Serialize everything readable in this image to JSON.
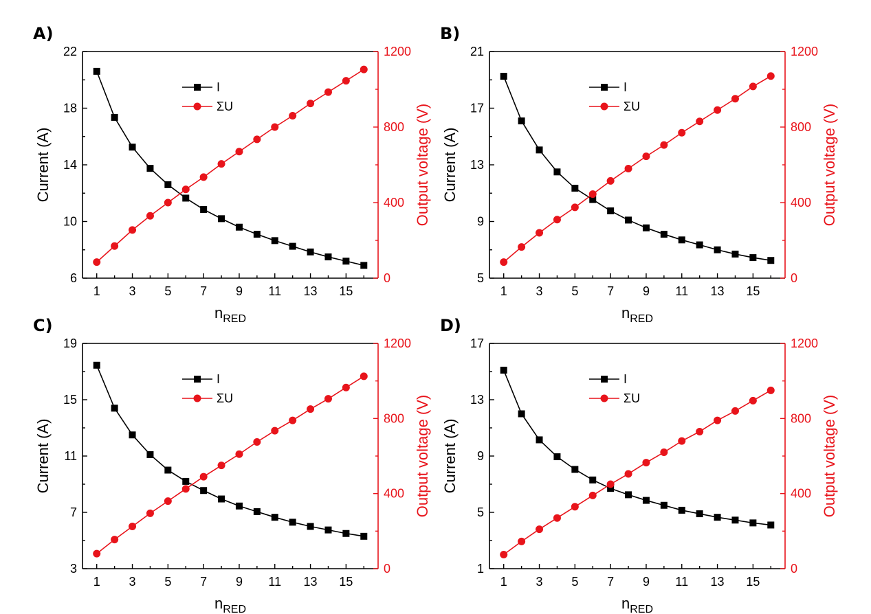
{
  "chart_data": [
    {
      "panel_label": "A)",
      "type": "line",
      "xlabel": "n",
      "xlabel_sub": "RED",
      "x": [
        1,
        2,
        3,
        4,
        5,
        6,
        7,
        8,
        9,
        10,
        11,
        12,
        13,
        14,
        15,
        16
      ],
      "x_ticks": [
        "1",
        "3",
        "5",
        "7",
        "9",
        "11",
        "13",
        "15"
      ],
      "left_axis": {
        "label": "Current (A)",
        "ylim": [
          6,
          22
        ],
        "ticks": [
          "6",
          "10",
          "14",
          "18",
          "22"
        ],
        "color": "#000000"
      },
      "right_axis": {
        "label": "Output voltage (V)",
        "ylim": [
          0,
          1200
        ],
        "ticks": [
          "0",
          "400",
          "800",
          "1200"
        ],
        "color": "#e8141b"
      },
      "series": [
        {
          "name": "I",
          "axis": "left",
          "color": "#000000",
          "marker": "square",
          "values": [
            20.6,
            17.35,
            15.25,
            13.75,
            12.6,
            11.65,
            10.85,
            10.2,
            9.6,
            9.1,
            8.65,
            8.25,
            7.85,
            7.5,
            7.2,
            6.9
          ]
        },
        {
          "name": "ΣU",
          "axis": "right",
          "color": "#e8141b",
          "marker": "circle",
          "values": [
            85,
            170,
            255,
            330,
            400,
            470,
            535,
            605,
            670,
            735,
            800,
            860,
            925,
            985,
            1045,
            1105
          ]
        }
      ]
    },
    {
      "panel_label": "B)",
      "type": "line",
      "xlabel": "n",
      "xlabel_sub": "RED",
      "x": [
        1,
        2,
        3,
        4,
        5,
        6,
        7,
        8,
        9,
        10,
        11,
        12,
        13,
        14,
        15,
        16
      ],
      "x_ticks": [
        "1",
        "3",
        "5",
        "7",
        "9",
        "11",
        "13",
        "15"
      ],
      "left_axis": {
        "label": "Current (A)",
        "ylim": [
          5,
          21
        ],
        "ticks": [
          "5",
          "9",
          "13",
          "17",
          "21"
        ],
        "color": "#000000"
      },
      "right_axis": {
        "label": "Output voltage (V)",
        "ylim": [
          0,
          1200
        ],
        "ticks": [
          "0",
          "400",
          "800",
          "1200"
        ],
        "color": "#e8141b"
      },
      "series": [
        {
          "name": "I",
          "axis": "left",
          "color": "#000000",
          "marker": "square",
          "values": [
            19.25,
            16.1,
            14.05,
            12.5,
            11.35,
            10.55,
            9.75,
            9.1,
            8.55,
            8.1,
            7.7,
            7.35,
            7.0,
            6.7,
            6.45,
            6.25
          ]
        },
        {
          "name": "ΣU",
          "axis": "right",
          "color": "#e8141b",
          "marker": "circle",
          "values": [
            85,
            165,
            240,
            310,
            375,
            445,
            515,
            580,
            645,
            705,
            770,
            830,
            890,
            950,
            1015,
            1070
          ]
        }
      ]
    },
    {
      "panel_label": "C)",
      "type": "line",
      "xlabel": "n",
      "xlabel_sub": "RED",
      "x": [
        1,
        2,
        3,
        4,
        5,
        6,
        7,
        8,
        9,
        10,
        11,
        12,
        13,
        14,
        15,
        16
      ],
      "x_ticks": [
        "1",
        "3",
        "5",
        "7",
        "9",
        "11",
        "13",
        "15"
      ],
      "left_axis": {
        "label": "Current (A)",
        "ylim": [
          3,
          19
        ],
        "ticks": [
          "3",
          "7",
          "11",
          "15",
          "19"
        ],
        "color": "#000000"
      },
      "right_axis": {
        "label": "Output voltage (V)",
        "ylim": [
          0,
          1200
        ],
        "ticks": [
          "0",
          "400",
          "800",
          "1200"
        ],
        "color": "#e8141b"
      },
      "series": [
        {
          "name": "I",
          "axis": "left",
          "color": "#000000",
          "marker": "square",
          "values": [
            17.45,
            14.4,
            12.5,
            11.1,
            10.0,
            9.2,
            8.55,
            7.95,
            7.45,
            7.05,
            6.65,
            6.3,
            6.0,
            5.75,
            5.5,
            5.3
          ]
        },
        {
          "name": "ΣU",
          "axis": "right",
          "color": "#e8141b",
          "marker": "circle",
          "values": [
            80,
            155,
            225,
            295,
            360,
            425,
            490,
            550,
            610,
            675,
            735,
            790,
            850,
            905,
            965,
            1025
          ]
        }
      ]
    },
    {
      "panel_label": "D)",
      "type": "line",
      "xlabel": "n",
      "xlabel_sub": "RED",
      "x": [
        1,
        2,
        3,
        4,
        5,
        6,
        7,
        8,
        9,
        10,
        11,
        12,
        13,
        14,
        15,
        16
      ],
      "x_ticks": [
        "1",
        "3",
        "5",
        "7",
        "9",
        "11",
        "13",
        "15"
      ],
      "left_axis": {
        "label": "Current (A)",
        "ylim": [
          1,
          17
        ],
        "ticks": [
          "1",
          "5",
          "9",
          "13",
          "17"
        ],
        "color": "#000000"
      },
      "right_axis": {
        "label": "Output voltage (V)",
        "ylim": [
          0,
          1200
        ],
        "ticks": [
          "0",
          "400",
          "800",
          "1200"
        ],
        "color": "#e8141b"
      },
      "series": [
        {
          "name": "I",
          "axis": "left",
          "color": "#000000",
          "marker": "square",
          "values": [
            15.1,
            12.0,
            10.15,
            8.95,
            8.05,
            7.3,
            6.7,
            6.25,
            5.85,
            5.5,
            5.15,
            4.9,
            4.65,
            4.45,
            4.25,
            4.1
          ]
        },
        {
          "name": "ΣU",
          "axis": "right",
          "color": "#e8141b",
          "marker": "circle",
          "values": [
            75,
            145,
            210,
            270,
            330,
            390,
            450,
            505,
            565,
            620,
            680,
            730,
            790,
            840,
            895,
            950
          ]
        }
      ]
    }
  ]
}
